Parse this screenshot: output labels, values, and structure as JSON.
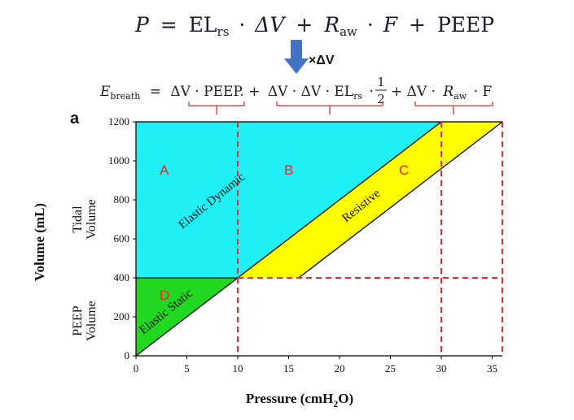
{
  "top_formula": {
    "lhs": "P",
    "eq": "=",
    "el": "EL",
    "el_sub": "rs",
    "dot": "·",
    "dv": "ΔV",
    "plus": "+",
    "r": "R",
    "r_sub": "aw",
    "f": "F",
    "peep": "PEEP"
  },
  "arrow_label": "×ΔV",
  "energy_formula": {
    "e": "E",
    "e_sub": "breath",
    "eq": "=",
    "term1": "ΔV · PEEP.",
    "plus": "+",
    "term2": "ΔV · ΔV · EL",
    "term2_sub": "rs",
    "term2_dot": "·",
    "frac_num": "1",
    "frac_den": "2",
    "term3a": "+ ΔV ·",
    "term3_r": "R",
    "term3_r_sub": "aw",
    "term3b": "· F"
  },
  "panel_label": "a",
  "axes": {
    "x_label_main": "Pressure (cmH",
    "x_label_sub": "2",
    "x_label_end": "O)",
    "y_label": "Volume (mL)",
    "tidal_1": "Tidal",
    "tidal_2": "Volume",
    "peep_1": "PEEP",
    "peep_2": "Volume"
  },
  "regions": {
    "a": "A",
    "b": "B",
    "c": "C",
    "d": "D",
    "elastic_dynamic": "Elastic Dynamic",
    "resistive": "Resistive",
    "elastic_static": "Elastic Static"
  },
  "colors": {
    "cyan": "#1ff0f5",
    "yellow": "#ffff00",
    "green": "#1fd81f",
    "red_dash": "#e8282a",
    "arrow": "#4472c4",
    "bracket": "#e05050"
  },
  "chart_data": {
    "type": "area",
    "title": "",
    "xlabel": "Pressure (cmH2O)",
    "ylabel": "Volume (mL)",
    "xlim": [
      0,
      36
    ],
    "ylim": [
      0,
      1200
    ],
    "x_ticks": [
      0,
      5,
      10,
      15,
      20,
      25,
      30,
      35
    ],
    "y_ticks": [
      0,
      200,
      400,
      600,
      800,
      1000,
      1200
    ],
    "peep_volume": 400,
    "peep_pressure": 10,
    "max_volume": 1200,
    "elastic_line": [
      [
        0,
        0
      ],
      [
        30,
        1200
      ]
    ],
    "resistive_line": [
      [
        16,
        400
      ],
      [
        36,
        1200
      ]
    ],
    "dashed_verticals": [
      10,
      30,
      36
    ],
    "dashed_horizontal": 400,
    "regions": [
      {
        "name": "A",
        "label": "Elastic Dynamic",
        "polygon": [
          [
            0,
            400
          ],
          [
            0,
            1200
          ],
          [
            30,
            1200
          ],
          [
            10,
            400
          ]
        ]
      },
      {
        "name": "C",
        "label": "Resistive",
        "polygon": [
          [
            10,
            400
          ],
          [
            16,
            400
          ],
          [
            36,
            1200
          ],
          [
            30,
            1200
          ]
        ]
      },
      {
        "name": "D",
        "label": "Elastic Static",
        "polygon": [
          [
            0,
            0
          ],
          [
            0,
            400
          ],
          [
            10,
            400
          ]
        ]
      }
    ]
  }
}
